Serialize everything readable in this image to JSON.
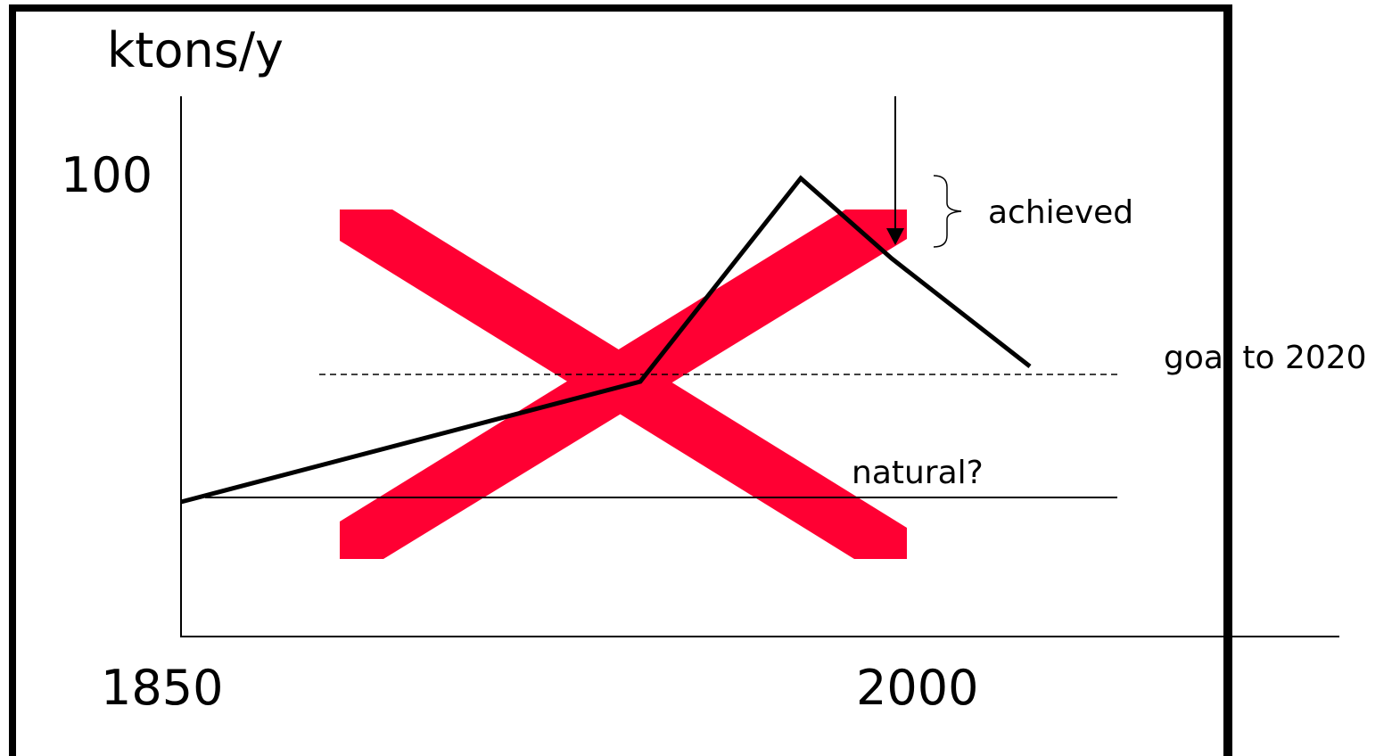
{
  "axis_label": "ktons/y",
  "y_tick": "100",
  "x_ticks": [
    "1850",
    "2000"
  ],
  "annotations": {
    "achieved": "achieved",
    "goal": "goal to 2020",
    "natural": "natural?"
  }
}
